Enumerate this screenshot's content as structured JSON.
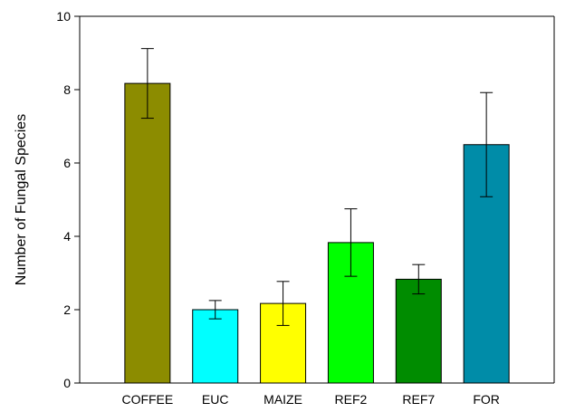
{
  "chart_data": {
    "type": "bar",
    "title": "",
    "xlabel": "",
    "ylabel": "Number of Fungal Species",
    "ylim": [
      0,
      10
    ],
    "yticks": [
      0,
      2,
      4,
      6,
      8,
      10
    ],
    "grid": false,
    "categories": [
      "COFFEE",
      "EUC",
      "MAIZE",
      "REF2",
      "REF7",
      "FOR"
    ],
    "values": [
      8.17,
      2.0,
      2.17,
      3.83,
      2.83,
      6.5
    ],
    "errors": [
      0.95,
      0.25,
      0.6,
      0.92,
      0.4,
      1.42
    ],
    "colors": [
      "#8c8c00",
      "#00ffff",
      "#ffff00",
      "#00ff00",
      "#008c00",
      "#008ca8"
    ]
  }
}
